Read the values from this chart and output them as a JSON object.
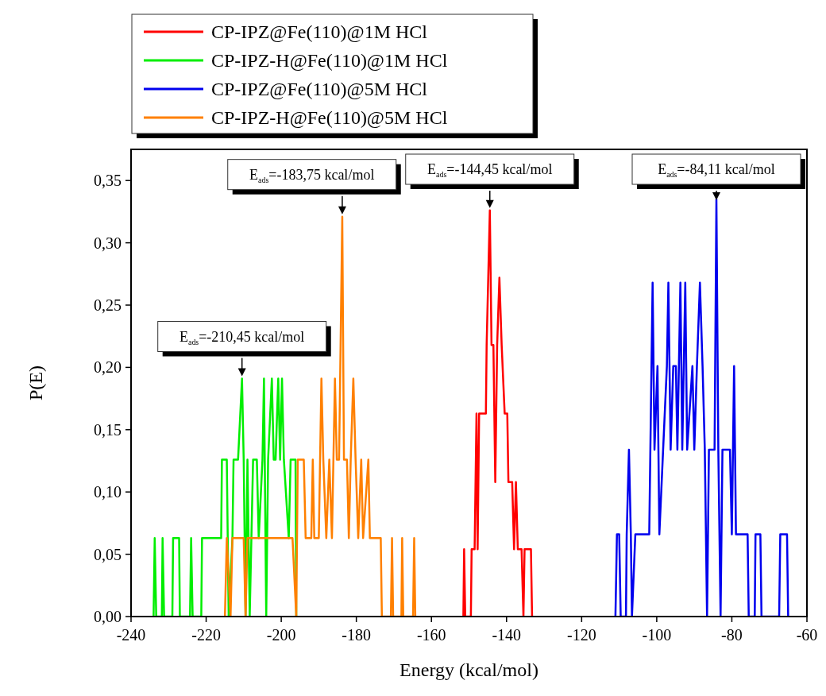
{
  "chart_data": {
    "type": "line",
    "xlabel": "Energy (kcal/mol)",
    "ylabel": "P(E)",
    "xlim": [
      -240,
      -60
    ],
    "ylim": [
      0,
      0.375
    ],
    "xticks": [
      -240,
      -220,
      -200,
      -180,
      -160,
      -140,
      -120,
      -100,
      -80,
      -60
    ],
    "yticks": [
      {
        "value": 0,
        "label": "0,00"
      },
      {
        "value": 0.05,
        "label": "0,05"
      },
      {
        "value": 0.1,
        "label": "0,10"
      },
      {
        "value": 0.15,
        "label": "0,15"
      },
      {
        "value": 0.2,
        "label": "0,20"
      },
      {
        "value": 0.25,
        "label": "0,25"
      },
      {
        "value": 0.3,
        "label": "0,30"
      },
      {
        "value": 0.35,
        "label": "0,35"
      }
    ],
    "legend": "top left",
    "grid": false,
    "marker": "none",
    "line_style": "solid",
    "series": [
      {
        "name": "CP-IPZ@Fe(110)@1M HCl",
        "color": "#ff0000",
        "x": [
          -151.5,
          -151.3,
          -151.0,
          -149.5,
          -149.3,
          -148.5,
          -148.0,
          -147.7,
          -147.3,
          -146.5,
          -145.5,
          -145.3,
          -144.45,
          -144.0,
          -143.5,
          -143.0,
          -142.5,
          -141.9,
          -141.3,
          -140.5,
          -139.8,
          -139.5,
          -138.5,
          -138.0,
          -137.5,
          -137.0,
          -136.0,
          -135.5,
          -135.2,
          -134.0,
          -133.5,
          -133.2
        ],
        "values": [
          0,
          0.054,
          0,
          0,
          0.054,
          0.054,
          0.163,
          0.054,
          0.163,
          0.163,
          0.163,
          0.218,
          0.326,
          0.218,
          0.218,
          0.108,
          0.218,
          0.272,
          0.218,
          0.163,
          0.163,
          0.108,
          0.108,
          0.054,
          0.108,
          0.054,
          0.054,
          0,
          0.054,
          0.054,
          0.054,
          0
        ]
      },
      {
        "name": "CP-IPZ-H@Fe(110)@1M HCl",
        "color": "#00ee00",
        "x": [
          -234,
          -233.7,
          -233.3,
          -231.8,
          -231.6,
          -231.2,
          -229,
          -228.8,
          -227.2,
          -227,
          -224.3,
          -224,
          -223.6,
          -221.3,
          -221.1,
          -218,
          -216,
          -215.8,
          -214.5,
          -214,
          -213,
          -212.7,
          -211.5,
          -210.45,
          -210,
          -209.5,
          -209,
          -208.4,
          -207.5,
          -206.5,
          -206,
          -205,
          -204.6,
          -204,
          -203.5,
          -202.5,
          -202,
          -201.5,
          -200.8,
          -200.3,
          -199.8,
          -199.3,
          -198,
          -197.5,
          -196.2,
          -196
        ],
        "values": [
          0,
          0.063,
          0,
          0,
          0.063,
          0,
          0,
          0.063,
          0.063,
          0,
          0,
          0.063,
          0,
          0,
          0.063,
          0.063,
          0.063,
          0.126,
          0.126,
          0,
          0.063,
          0.126,
          0.126,
          0.191,
          0.126,
          0,
          0.126,
          0,
          0.126,
          0.126,
          0.063,
          0.126,
          0.191,
          0,
          0.126,
          0.191,
          0.126,
          0.126,
          0.191,
          0.126,
          0.191,
          0.126,
          0.063,
          0.126,
          0.126,
          0
        ]
      },
      {
        "name": "CP-IPZ@Fe(110)@5M HCl",
        "color": "#0000ee",
        "x": [
          -111,
          -110.6,
          -110,
          -109.6,
          -108.2,
          -108,
          -107.4,
          -106.9,
          -106.6,
          -105.7,
          -104,
          -102,
          -101.1,
          -100.6,
          -99.8,
          -99.3,
          -98.3,
          -97.3,
          -96.9,
          -96.3,
          -95.6,
          -94.9,
          -94.5,
          -93.7,
          -93.2,
          -92.4,
          -91.9,
          -90.5,
          -90,
          -89.3,
          -88.5,
          -87.8,
          -87.2,
          -86.6,
          -86.1,
          -84.6,
          -84.11,
          -83.6,
          -83,
          -82.5,
          -80.5,
          -80,
          -79.4,
          -78.9,
          -78.3,
          -75.8,
          -75.5,
          -73.9,
          -73.7,
          -72.4,
          -72.1,
          -67.4,
          -67.1,
          -65.3,
          -65
        ],
        "values": [
          0,
          0.066,
          0.066,
          0,
          0,
          0.066,
          0.134,
          0.066,
          0,
          0.066,
          0.066,
          0.066,
          0.268,
          0.134,
          0.201,
          0.066,
          0.134,
          0.201,
          0.268,
          0.134,
          0.201,
          0.201,
          0.134,
          0.268,
          0.134,
          0.268,
          0.134,
          0.201,
          0.134,
          0.201,
          0.268,
          0.201,
          0.134,
          0,
          0.134,
          0.134,
          0.335,
          0.134,
          0,
          0.134,
          0.134,
          0.066,
          0.201,
          0.066,
          0.066,
          0.066,
          0,
          0,
          0.066,
          0.066,
          0,
          0,
          0.066,
          0.066,
          0
        ]
      },
      {
        "name": "CP-IPZ-H@Fe(110)@5M HCl",
        "color": "#ff8000",
        "x": [
          -215,
          -214.5,
          -213.5,
          -213,
          -210,
          -209.5,
          -209,
          -200,
          -197,
          -196,
          -195.6,
          -194,
          -193.5,
          -192,
          -191.6,
          -191.2,
          -190,
          -189.3,
          -188.8,
          -188,
          -187.2,
          -186.5,
          -185.7,
          -185.2,
          -184.6,
          -183.75,
          -183.3,
          -182.5,
          -182,
          -181.5,
          -180.8,
          -180.2,
          -179.5,
          -178.7,
          -178.2,
          -176.8,
          -176.4,
          -173.5,
          -173.2,
          -170.8,
          -170.5,
          -170.2,
          -168,
          -167.8,
          -167.5,
          -164.9,
          -164.6,
          -164.3
        ],
        "values": [
          0,
          0.063,
          0,
          0.063,
          0.063,
          0,
          0.063,
          0.063,
          0.063,
          0,
          0.126,
          0.126,
          0.063,
          0.063,
          0.126,
          0.063,
          0.063,
          0.191,
          0.126,
          0.063,
          0.126,
          0.063,
          0.191,
          0.126,
          0.126,
          0.321,
          0.126,
          0.126,
          0.063,
          0.126,
          0.191,
          0.126,
          0.063,
          0.126,
          0.063,
          0.126,
          0.063,
          0.063,
          0,
          0,
          0.063,
          0,
          0,
          0.063,
          0,
          0,
          0.063,
          0
        ]
      }
    ],
    "annotations": [
      {
        "text": "E$_{ads}$=-210,45 kcal/mol",
        "x": -210.45,
        "y": 0.191
      },
      {
        "text": "E$_{ads}$=-183,75 kcal/mol",
        "x": -183.75,
        "y": 0.321
      },
      {
        "text": "E$_{ads}$=-144,45 kcal/mol",
        "x": -144.45,
        "y": 0.326
      },
      {
        "text": "E$_{ads}$=-84,11 kcal/mol",
        "x": -84.11,
        "y": 0.335
      }
    ]
  }
}
